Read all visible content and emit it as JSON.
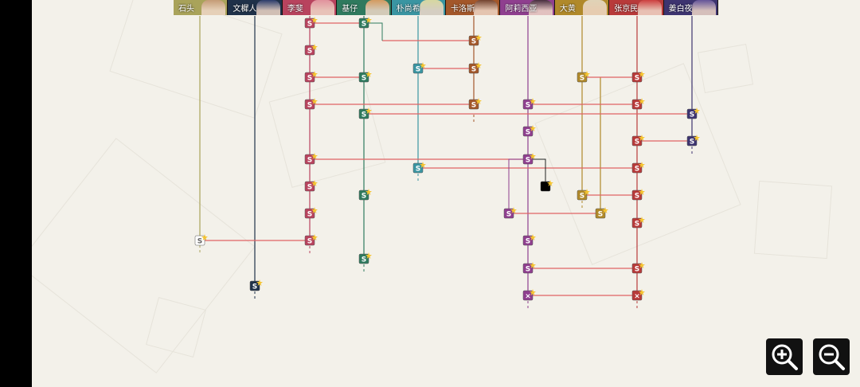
{
  "game": {
    "title": ""
  },
  "characters": [
    {
      "name": "石头",
      "color": "#a9a35a"
    },
    {
      "name": "文樨人",
      "color": "#1f3149"
    },
    {
      "name": "李斐",
      "color": "#b8435e"
    },
    {
      "name": "基仔",
      "color": "#2f7a5e"
    },
    {
      "name": "朴尚希",
      "color": "#3a95a2"
    },
    {
      "name": "卡洛斯",
      "color": "#a3572a"
    },
    {
      "name": "阿莉西亚",
      "color": "#8f3f8f"
    },
    {
      "name": "大黄",
      "color": "#b0892a"
    },
    {
      "name": "张京民",
      "color": "#b83a3a"
    },
    {
      "name": "姜白夜",
      "color": "#3d3470"
    }
  ],
  "node": {
    "glyph": "S",
    "locked_glyph": "×"
  },
  "controls": {
    "zoom_in_icon": "zoom-in-icon",
    "zoom_out_icon": "zoom-out-icon"
  }
}
